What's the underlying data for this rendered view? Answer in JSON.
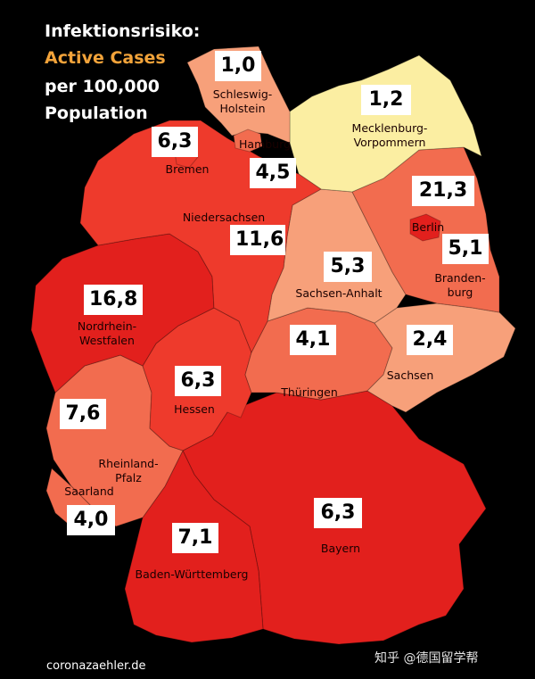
{
  "title": {
    "line1": "Infektionsrisiko:",
    "line2": "Active Cases",
    "line3": "per 100,000",
    "line4": "Population"
  },
  "colors": {
    "background": "#000000",
    "title_accent": "#f2a33a",
    "very_low": "#fbeea2",
    "low": "#f7a07a",
    "medium": "#f26c4f",
    "high": "#ee3a2c",
    "very_high": "#e2201d"
  },
  "states": [
    {
      "id": "schleswig-holstein",
      "label": [
        "Schleswig-",
        "Holstein"
      ],
      "value": "1,0",
      "level": "low"
    },
    {
      "id": "hamburg",
      "label": [
        "Hamburg"
      ],
      "value": "4,5",
      "level": "medium"
    },
    {
      "id": "mecklenburg-vorpommern",
      "label": [
        "Mecklenburg-",
        "Vorpommern"
      ],
      "value": "1,2",
      "level": "very_low"
    },
    {
      "id": "bremen",
      "label": [
        "Bremen"
      ],
      "value": "6,3",
      "level": "high"
    },
    {
      "id": "niedersachsen",
      "label": [
        "Niedersachsen"
      ],
      "value": "11,6",
      "level": "high"
    },
    {
      "id": "berlin",
      "label": [
        "Berlin"
      ],
      "value": "21,3",
      "level": "very_high"
    },
    {
      "id": "brandenburg",
      "label": [
        "Branden-",
        "burg"
      ],
      "value": "5,1",
      "level": "medium"
    },
    {
      "id": "sachsen-anhalt",
      "label": [
        "Sachsen-Anhalt"
      ],
      "value": "5,3",
      "level": "low"
    },
    {
      "id": "nordrhein-westfalen",
      "label": [
        "Nordrhein-",
        "Westfalen"
      ],
      "value": "16,8",
      "level": "very_high"
    },
    {
      "id": "thueringen",
      "label": [
        "Thüringen"
      ],
      "value": "4,1",
      "level": "medium"
    },
    {
      "id": "sachsen",
      "label": [
        "Sachsen"
      ],
      "value": "2,4",
      "level": "low"
    },
    {
      "id": "hessen",
      "label": [
        "Hessen"
      ],
      "value": "6,3",
      "level": "high"
    },
    {
      "id": "rheinland-pfalz",
      "label": [
        "Rheinland-",
        "Pfalz"
      ],
      "value": "7,6",
      "level": "medium"
    },
    {
      "id": "saarland",
      "label": [
        "Saarland"
      ],
      "value": "4,0",
      "level": "medium"
    },
    {
      "id": "bayern",
      "label": [
        "Bayern"
      ],
      "value": "6,3",
      "level": "very_high"
    },
    {
      "id": "baden-wuerttemberg",
      "label": [
        "Baden-Württemberg"
      ],
      "value": "7,1",
      "level": "very_high"
    }
  ],
  "footer": {
    "source": "coronazaehler.de"
  },
  "watermark": {
    "text": "知乎 @德国留学帮"
  }
}
